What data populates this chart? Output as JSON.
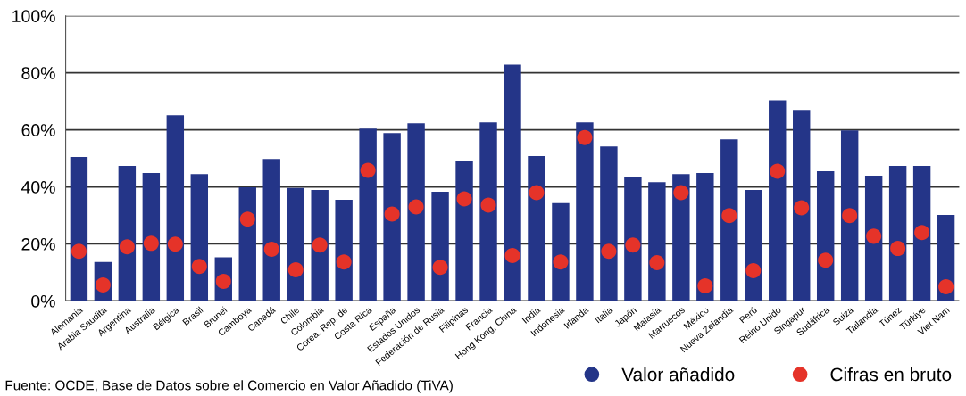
{
  "chart_data": {
    "type": "bar",
    "categories": [
      "Alemania",
      "Arabia Saudita",
      "Argentina",
      "Australia",
      "Bélgica",
      "Brasil",
      "Brunei",
      "Camboya",
      "Canadá",
      "Chile",
      "Colombia",
      "Corea, Rep. de",
      "Costa Rica",
      "España",
      "Estados Unidos",
      "Federación de Rusia",
      "Filipinas",
      "Francia",
      "Hong Kong, China",
      "India",
      "Indonesia",
      "Irlanda",
      "Italia",
      "Japón",
      "Malasia",
      "Marruecos",
      "México",
      "Nueva Zelandia",
      "Perú",
      "Reino Unido",
      "Singapur",
      "Sudáfrica",
      "Suiza",
      "Tailandia",
      "Túnez",
      "Türkiye",
      "Viet Nam"
    ],
    "series": [
      {
        "name": "Valor añadido",
        "color": "#243588",
        "values": [
          50.5,
          13.7,
          47.4,
          44.9,
          65.1,
          44.5,
          15.3,
          39.9,
          49.8,
          39.6,
          38.9,
          35.5,
          60.4,
          58.9,
          62.3,
          38.3,
          49.2,
          62.6,
          82.9,
          50.8,
          34.3,
          62.6,
          54.2,
          43.6,
          41.7,
          44.5,
          44.9,
          56.7,
          38.9,
          70.4,
          67.0,
          45.5,
          59.8,
          43.9,
          47.4,
          47.4,
          30.2
        ]
      },
      {
        "name": "Cifras en bruto",
        "type": "scatter",
        "color": "#e53329",
        "values": [
          17.4,
          5.6,
          19.0,
          20.2,
          19.9,
          12.1,
          6.9,
          28.7,
          18.1,
          10.9,
          19.6,
          13.7,
          45.8,
          30.5,
          33.0,
          11.8,
          35.8,
          33.6,
          15.9,
          38.0,
          13.7,
          57.3,
          17.4,
          19.6,
          13.4,
          38.0,
          5.3,
          29.9,
          10.6,
          45.5,
          32.7,
          14.3,
          29.9,
          22.7,
          18.4,
          24.0,
          5.0
        ]
      }
    ],
    "ylim": [
      0,
      100
    ],
    "yticks": [
      {
        "value": 0,
        "label": "0%"
      },
      {
        "value": 20,
        "label": "20%"
      },
      {
        "value": 40,
        "label": "40%"
      },
      {
        "value": 60,
        "label": "60%"
      },
      {
        "value": 80,
        "label": "80%"
      },
      {
        "value": 100,
        "label": "100%"
      }
    ],
    "grid": "y",
    "legend": "bottom right",
    "marker": "circle",
    "annotations": [
      "Fuente: OCDE, Base de Datos sobre el Comercio en Valor Añadido (TiVA)"
    ]
  }
}
